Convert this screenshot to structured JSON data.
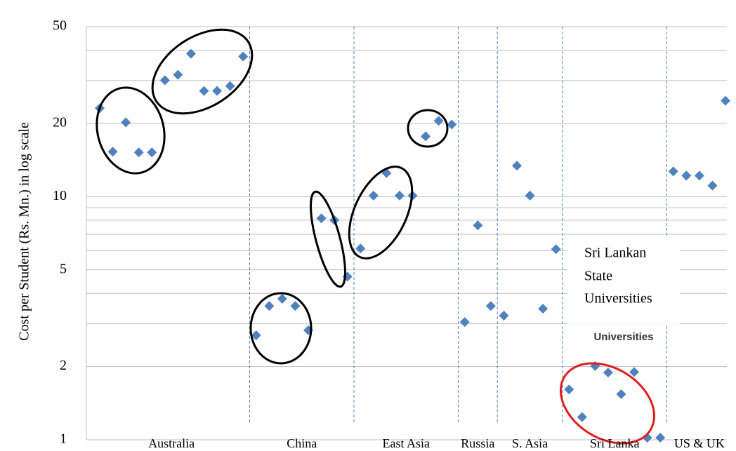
{
  "chart_data": {
    "type": "scatter",
    "y_label": "Cost per Student (Rs. Mn.) in log scale",
    "log_y": true,
    "grid": true,
    "color": "#4f81bd",
    "ylim": [
      1,
      50
    ],
    "yticks": [
      1,
      2,
      5,
      10,
      20,
      50
    ],
    "yminor": [
      3,
      4,
      6,
      7,
      8,
      9,
      30,
      40
    ],
    "categories": [
      "Australia",
      "China",
      "East Asia",
      "Russia",
      "S. Asia",
      "Sri Lanka",
      "US & UK"
    ],
    "values": [
      [
        23.1,
        15.3,
        20.2,
        15.2,
        15.2,
        30.1,
        31.7,
        38.7,
        27.2,
        27.2,
        28.5,
        37.7
      ],
      [
        2.69,
        3.55,
        3.8,
        3.55,
        2.82,
        8.14,
        8.0,
        4.69
      ],
      [
        6.12,
        10.1,
        12.5,
        10.1,
        10.1,
        17.7,
        20.5,
        19.8
      ],
      [
        3.05,
        7.62,
        3.55
      ],
      [
        3.24,
        13.4,
        10.1,
        3.46,
        6.08
      ],
      [
        1.61,
        1.24,
        2.01,
        1.89,
        1.54,
        1.9,
        1.02,
        1.02
      ],
      [
        12.7,
        12.2,
        12.2,
        11.1,
        24.8
      ]
    ],
    "annotations": [
      "Sri Lankan",
      "State",
      "Universities",
      "Universities"
    ]
  }
}
